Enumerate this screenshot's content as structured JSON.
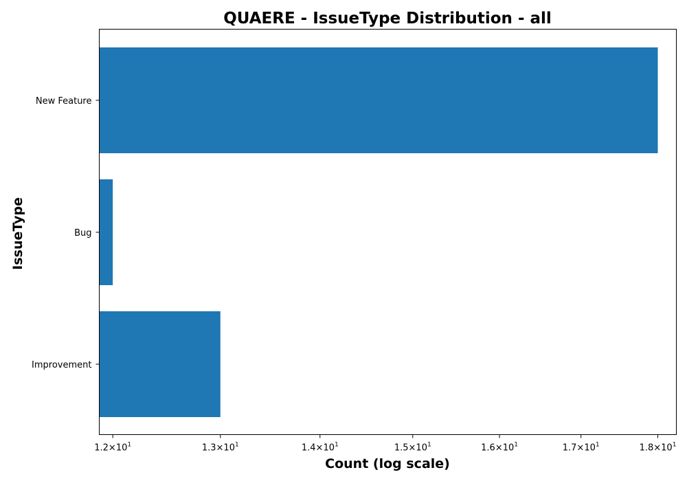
{
  "chart_data": {
    "type": "bar",
    "orientation": "horizontal",
    "title": "QUAERE - IssueType Distribution - all",
    "xlabel": "Count (log scale)",
    "ylabel": "IssueType",
    "x_scale": "log",
    "xlim": [
      11.88,
      18.25
    ],
    "categories": [
      "New Feature",
      "Bug",
      "Improvement"
    ],
    "values": [
      18,
      12,
      13
    ],
    "x_ticks": [
      {
        "value": 12,
        "mantissa": "1.2",
        "base": "10",
        "exp": "1"
      },
      {
        "value": 13,
        "mantissa": "1.3",
        "base": "10",
        "exp": "1"
      },
      {
        "value": 14,
        "mantissa": "1.4",
        "base": "10",
        "exp": "1"
      },
      {
        "value": 15,
        "mantissa": "1.5",
        "base": "10",
        "exp": "1"
      },
      {
        "value": 16,
        "mantissa": "1.6",
        "base": "10",
        "exp": "1"
      },
      {
        "value": 17,
        "mantissa": "1.7",
        "base": "10",
        "exp": "1"
      },
      {
        "value": 18,
        "mantissa": "1.8",
        "base": "10",
        "exp": "1"
      }
    ],
    "bar_color": "#1f77b4",
    "grid": false,
    "legend": "none"
  }
}
